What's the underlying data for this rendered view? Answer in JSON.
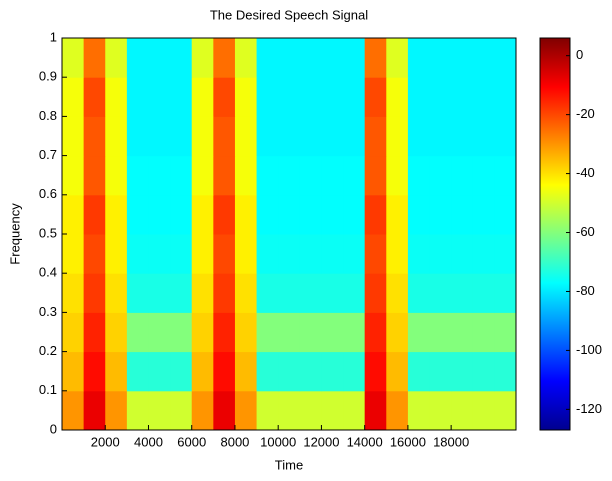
{
  "chart_data": {
    "type": "heatmap",
    "title": "The Desired Speech Signal",
    "x_label": "Time",
    "y_label": "Frequency",
    "colormap": "jet",
    "x": [
      500,
      1500,
      2500,
      3500,
      4500,
      5500,
      6500,
      7500,
      8500,
      9500,
      10500,
      11500,
      12500,
      13500,
      14500,
      15500,
      16500,
      17500,
      18500,
      19500,
      20500
    ],
    "y": [
      0.05,
      0.15,
      0.25,
      0.35,
      0.45,
      0.55,
      0.65,
      0.75,
      0.85,
      0.95
    ],
    "z": [
      [
        -30,
        -8,
        -30,
        -50,
        -50,
        -50,
        -30,
        -8,
        -30,
        -50,
        -50,
        -50,
        -50,
        -50,
        -8,
        -30,
        -50,
        -50,
        -50,
        -50,
        -50
      ],
      [
        -35,
        -12,
        -35,
        -72,
        -72,
        -72,
        -35,
        -12,
        -35,
        -72,
        -72,
        -72,
        -72,
        -72,
        -12,
        -35,
        -72,
        -72,
        -72,
        -72,
        -72
      ],
      [
        -38,
        -15,
        -38,
        -60,
        -60,
        -60,
        -38,
        -15,
        -38,
        -60,
        -60,
        -60,
        -60,
        -60,
        -15,
        -38,
        -60,
        -60,
        -60,
        -60,
        -60
      ],
      [
        -40,
        -18,
        -40,
        -74,
        -74,
        -74,
        -40,
        -18,
        -40,
        -74,
        -74,
        -74,
        -74,
        -74,
        -18,
        -40,
        -74,
        -74,
        -74,
        -74,
        -74
      ],
      [
        -42,
        -20,
        -42,
        -76,
        -76,
        -76,
        -42,
        -20,
        -42,
        -76,
        -76,
        -76,
        -76,
        -76,
        -20,
        -42,
        -76,
        -76,
        -76,
        -76,
        -76
      ],
      [
        -42,
        -18,
        -42,
        -77,
        -77,
        -77,
        -42,
        -18,
        -42,
        -77,
        -77,
        -77,
        -77,
        -77,
        -18,
        -42,
        -77,
        -77,
        -77,
        -77,
        -77
      ],
      [
        -45,
        -22,
        -45,
        -77,
        -77,
        -77,
        -45,
        -22,
        -45,
        -77,
        -77,
        -77,
        -77,
        -77,
        -22,
        -45,
        -77,
        -77,
        -77,
        -77,
        -77
      ],
      [
        -45,
        -22,
        -45,
        -78,
        -78,
        -78,
        -45,
        -22,
        -45,
        -78,
        -78,
        -78,
        -78,
        -78,
        -22,
        -45,
        -78,
        -78,
        -78,
        -78,
        -78
      ],
      [
        -45,
        -20,
        -45,
        -78,
        -78,
        -78,
        -45,
        -20,
        -45,
        -78,
        -78,
        -78,
        -78,
        -78,
        -20,
        -45,
        -78,
        -78,
        -78,
        -78,
        -78
      ],
      [
        -48,
        -25,
        -48,
        -78,
        -78,
        -78,
        -48,
        -25,
        -48,
        -78,
        -78,
        -78,
        -78,
        -78,
        -25,
        -48,
        -78,
        -78,
        -78,
        -78,
        -78
      ]
    ],
    "xlim": [
      0,
      21000
    ],
    "ylim": [
      0,
      1
    ],
    "xticks": [
      2000,
      4000,
      6000,
      8000,
      10000,
      12000,
      14000,
      16000,
      18000
    ],
    "yticks": [
      0,
      0.1,
      0.2,
      0.3,
      0.4,
      0.5,
      0.6,
      0.7,
      0.8,
      0.9,
      1
    ],
    "clim": [
      -127,
      6
    ],
    "cticks": [
      -120,
      -100,
      -80,
      -60,
      -40,
      -20,
      0
    ]
  }
}
